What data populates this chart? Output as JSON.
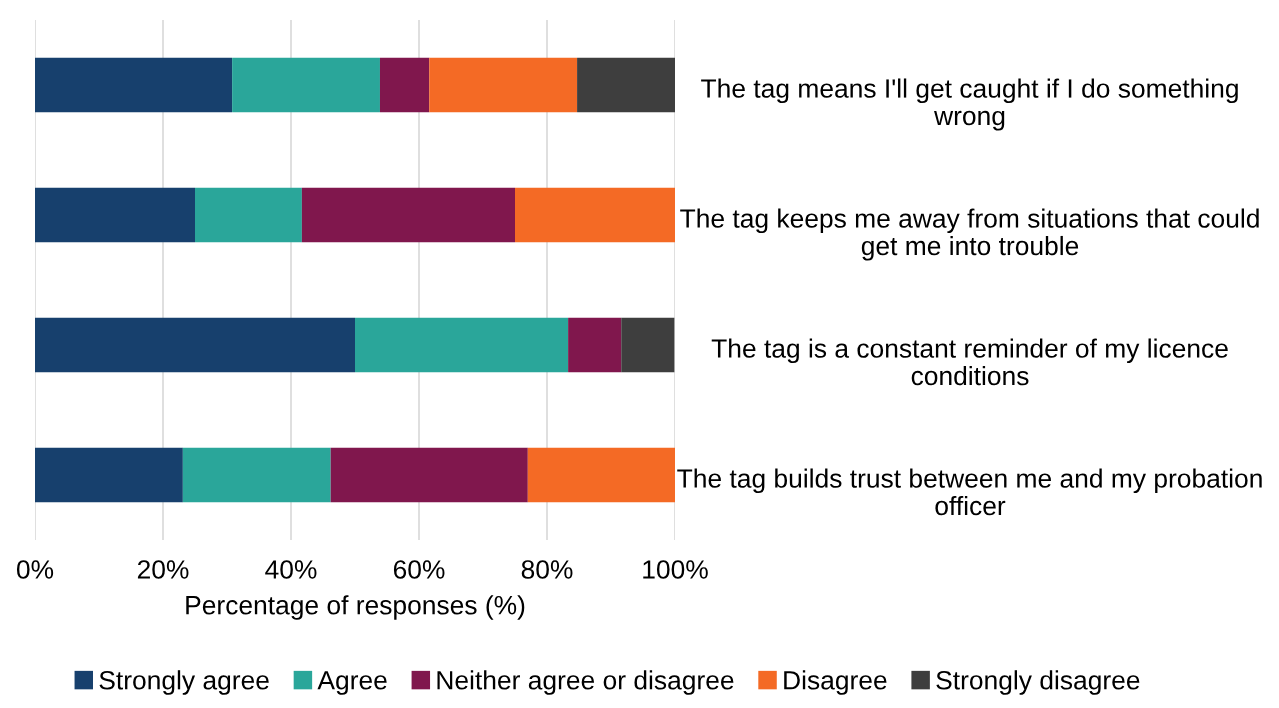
{
  "chart_data": {
    "type": "bar",
    "orientation": "horizontal",
    "stacked": true,
    "xlabel": "Percentage of responses (%)",
    "categories": [
      "The tag means I'll get caught if I do something wrong",
      "The tag keeps me away from situations that could get me into trouble",
      "The tag is a constant reminder of my licence conditions",
      "The tag builds trust between me and my probation officer"
    ],
    "series": [
      {
        "name": "Strongly agree",
        "color": "#17406d",
        "values": [
          30.8,
          25.0,
          50.0,
          23.1
        ]
      },
      {
        "name": "Agree",
        "color": "#2aa69a",
        "values": [
          23.1,
          16.7,
          33.3,
          23.1
        ]
      },
      {
        "name": "Neither agree or disagree",
        "color": "#80174d",
        "values": [
          7.7,
          33.3,
          8.3,
          30.8
        ]
      },
      {
        "name": "Disagree",
        "color": "#f46a25",
        "values": [
          23.1,
          25.0,
          0,
          23.1
        ]
      },
      {
        "name": "Strongly disagree",
        "color": "#3e3e3e",
        "values": [
          15.4,
          0,
          8.3,
          0
        ]
      }
    ],
    "xlim": [
      0,
      100
    ],
    "xticks": [
      {
        "value": 0,
        "label": "0%"
      },
      {
        "value": 20,
        "label": "20%"
      },
      {
        "value": 40,
        "label": "40%"
      },
      {
        "value": 60,
        "label": "60%"
      },
      {
        "value": 80,
        "label": "80%"
      },
      {
        "value": 100,
        "label": "100%"
      }
    ],
    "grid": "x",
    "legend": "bottom"
  }
}
